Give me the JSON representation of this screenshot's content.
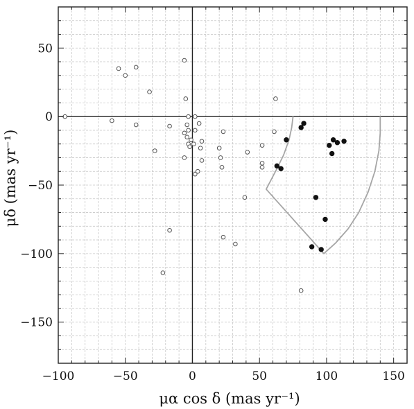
{
  "chart_data": {
    "type": "scatter",
    "xlabel": "μα cos δ (mas yr⁻¹)",
    "ylabel": "μδ (mas yr⁻¹)",
    "xlim": [
      -100,
      160
    ],
    "ylim": [
      -180,
      80
    ],
    "xticks": [
      -100,
      -50,
      0,
      50,
      100,
      150
    ],
    "yticks": [
      -150,
      -100,
      -50,
      0,
      50
    ],
    "xtick_labels": [
      "−100",
      "−50",
      "0",
      "50",
      "100",
      "150"
    ],
    "ytick_labels": [
      "−150",
      "−100",
      "−50",
      "0",
      "50"
    ],
    "minor_grid_step": 10,
    "grid": true,
    "zero_lines": true,
    "series": [
      {
        "marker": "open-circle",
        "color": "#555555",
        "points": [
          [
            -95,
            0
          ],
          [
            -60,
            -3
          ],
          [
            -55,
            35
          ],
          [
            -50,
            30
          ],
          [
            -42,
            36
          ],
          [
            -42,
            -6
          ],
          [
            -32,
            18
          ],
          [
            -28,
            -25
          ],
          [
            -17,
            -7
          ],
          [
            -17,
            -83
          ],
          [
            -22,
            -114
          ],
          [
            -6,
            41
          ],
          [
            -5,
            13
          ],
          [
            -6,
            -12
          ],
          [
            -6,
            -30
          ],
          [
            -4,
            -6
          ],
          [
            -4,
            -15
          ],
          [
            -3,
            0
          ],
          [
            -3,
            -10
          ],
          [
            -3,
            -20
          ],
          [
            -2,
            -22
          ],
          [
            -1,
            -17
          ],
          [
            1,
            -20
          ],
          [
            2,
            0
          ],
          [
            2,
            -10
          ],
          [
            2,
            -42
          ],
          [
            4,
            -40
          ],
          [
            5,
            -5
          ],
          [
            6,
            -23
          ],
          [
            7,
            -18
          ],
          [
            7,
            -32
          ],
          [
            20,
            -23
          ],
          [
            21,
            -30
          ],
          [
            22,
            -37
          ],
          [
            23,
            -11
          ],
          [
            23,
            -88
          ],
          [
            32,
            -93
          ],
          [
            39,
            -59
          ],
          [
            41,
            -26
          ],
          [
            52,
            -21
          ],
          [
            52,
            -34
          ],
          [
            52,
            -37
          ],
          [
            61,
            -11
          ],
          [
            62,
            13
          ],
          [
            81,
            -127
          ]
        ]
      },
      {
        "marker": "filled-circle",
        "color": "#111111",
        "points": [
          [
            63,
            -36
          ],
          [
            66,
            -38
          ],
          [
            70,
            -17
          ],
          [
            81,
            -8
          ],
          [
            83,
            -5
          ],
          [
            89,
            -95
          ],
          [
            92,
            -59
          ],
          [
            96,
            -97
          ],
          [
            99,
            -75
          ],
          [
            102,
            -21
          ],
          [
            104,
            -27
          ],
          [
            105,
            -17
          ],
          [
            108,
            -19
          ],
          [
            113,
            -18
          ]
        ]
      }
    ],
    "region_boundary": {
      "color": "#a6a6a6",
      "points": [
        [
          75,
          0
        ],
        [
          74,
          -8
        ],
        [
          72,
          -17
        ],
        [
          68,
          -28
        ],
        [
          63,
          -38
        ],
        [
          55,
          -53
        ],
        [
          98,
          -100
        ],
        [
          107,
          -92
        ],
        [
          116,
          -82
        ],
        [
          124,
          -70
        ],
        [
          131,
          -55
        ],
        [
          136,
          -40
        ],
        [
          139,
          -25
        ],
        [
          140,
          -12
        ],
        [
          140,
          0
        ]
      ]
    }
  }
}
